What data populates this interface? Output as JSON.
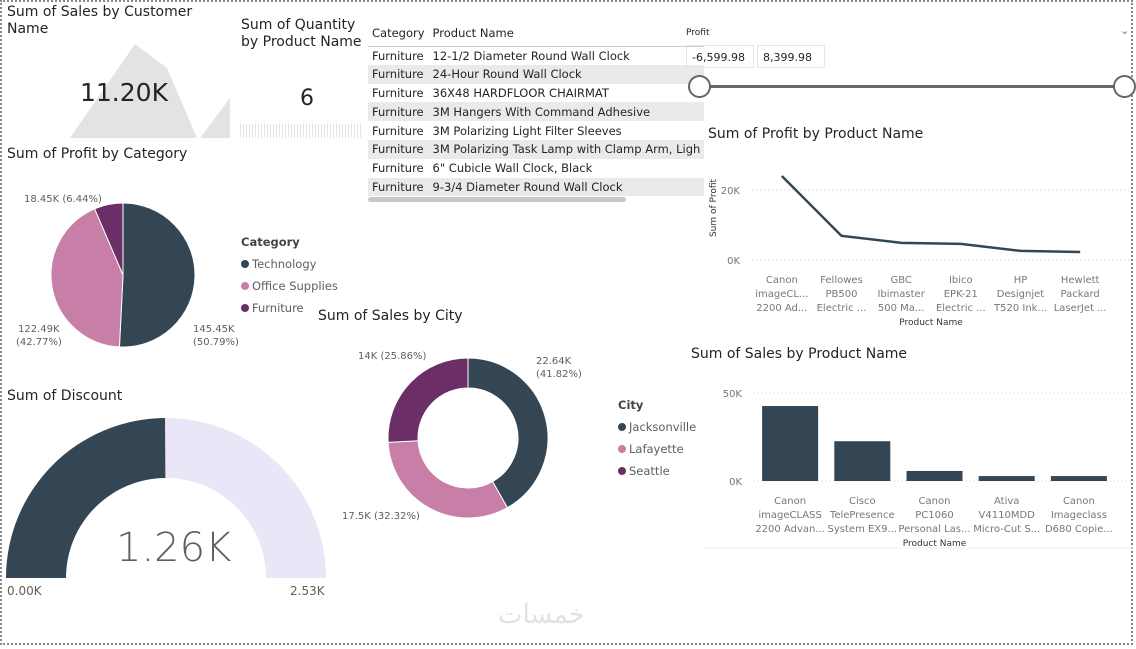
{
  "colors": {
    "dark": "#344654",
    "pink": "#c77ea7",
    "purple": "#6b2e66",
    "gauge_bg": "#e9e6f7",
    "area": "#e3e3e3"
  },
  "sales_customer": {
    "title": "Sum of Sales by Customer Name",
    "value": "11.20K"
  },
  "quantity_product": {
    "title": "Sum of Quantity by Product Name",
    "value": "6"
  },
  "table": {
    "headers": [
      "Category",
      "Product Name"
    ],
    "rows": [
      [
        "Furniture",
        "12-1/2 Diameter Round Wall Clock"
      ],
      [
        "Furniture",
        "24-Hour Round Wall Clock"
      ],
      [
        "Furniture",
        "36X48 HARDFLOOR CHAIRMAT"
      ],
      [
        "Furniture",
        "3M Hangers With Command Adhesive"
      ],
      [
        "Furniture",
        "3M Polarizing Light Filter Sleeves"
      ],
      [
        "Furniture",
        "3M Polarizing Task Lamp with Clamp Arm, Ligh"
      ],
      [
        "Furniture",
        "6\" Cubicle Wall Clock, Black"
      ],
      [
        "Furniture",
        "9-3/4 Diameter Round Wall Clock"
      ]
    ]
  },
  "slicer": {
    "label": "Profit",
    "min": "-6,599.98",
    "max": "8,399.98"
  },
  "profit_category": {
    "title": "Sum of Profit by Category",
    "legend_title": "Category",
    "labels": [
      "145.45K",
      "(50.79%)",
      "122.49K",
      "(42.77%)",
      "18.45K (6.44%)"
    ]
  },
  "sales_city": {
    "title": "Sum of Sales by City",
    "legend_title": "City",
    "labels": [
      "22.64K",
      "(41.82%)",
      "17.5K (32.32%)",
      "14K (25.86%)"
    ]
  },
  "discount": {
    "title": "Sum of Discount",
    "value": "1.26K",
    "min": "0.00K",
    "max": "2.53K"
  },
  "chart_data": [
    {
      "type": "pie",
      "title": "Sum of Profit by Category",
      "categories": [
        "Technology",
        "Office Supplies",
        "Furniture"
      ],
      "values": [
        145.45,
        122.49,
        18.45
      ],
      "percent": [
        50.79,
        42.77,
        6.44
      ],
      "unit": "K",
      "legend": "right"
    },
    {
      "type": "pie",
      "subtype": "donut",
      "title": "Sum of Sales by City",
      "categories": [
        "Jacksonville",
        "Lafayette",
        "Seattle"
      ],
      "values": [
        22.64,
        17.5,
        14
      ],
      "percent": [
        41.82,
        32.32,
        25.86
      ],
      "unit": "K",
      "legend": "right"
    },
    {
      "type": "gauge",
      "title": "Sum of Discount",
      "value": 1.26,
      "min": 0,
      "max": 2.53,
      "unit": "K"
    },
    {
      "type": "line",
      "title": "Sum of Profit by Product Name",
      "xlabel": "Product Name",
      "ylabel": "Sum of Profit",
      "categories": [
        [
          "Canon",
          "imageCL...",
          "2200 Ad..."
        ],
        [
          "Fellowes",
          "PB500",
          "Electric ..."
        ],
        [
          "GBC",
          "Ibimaster",
          "500 Ma..."
        ],
        [
          "Ibico",
          "EPK-21",
          "Electric ..."
        ],
        [
          "HP",
          "Designjet",
          "T520 Ink..."
        ],
        [
          "Hewlett",
          "Packard",
          "LaserJet ..."
        ]
      ],
      "values": [
        24000,
        6900,
        4900,
        4600,
        2600,
        2300
      ],
      "yticks": [
        "0K",
        "20K"
      ],
      "ylim": [
        0,
        20000
      ],
      "grid": true
    },
    {
      "type": "bar",
      "title": "Sum of Sales by Product Name",
      "xlabel": "Product Name",
      "categories": [
        [
          "Canon",
          "imageCLASS",
          "2200 Advan..."
        ],
        [
          "Cisco",
          "TelePresence",
          "System EX9..."
        ],
        [
          "Canon",
          "PC1060",
          "Personal Las..."
        ],
        [
          "Ativa",
          "V4110MDD",
          "Micro-Cut S..."
        ],
        [
          "Canon",
          "Imageclass",
          "D680 Copie..."
        ]
      ],
      "values": [
        42600,
        22600,
        5700,
        2800,
        2800
      ],
      "yticks": [
        "0K",
        "50K"
      ],
      "ylim": [
        0,
        50000
      ],
      "grid": true
    }
  ]
}
